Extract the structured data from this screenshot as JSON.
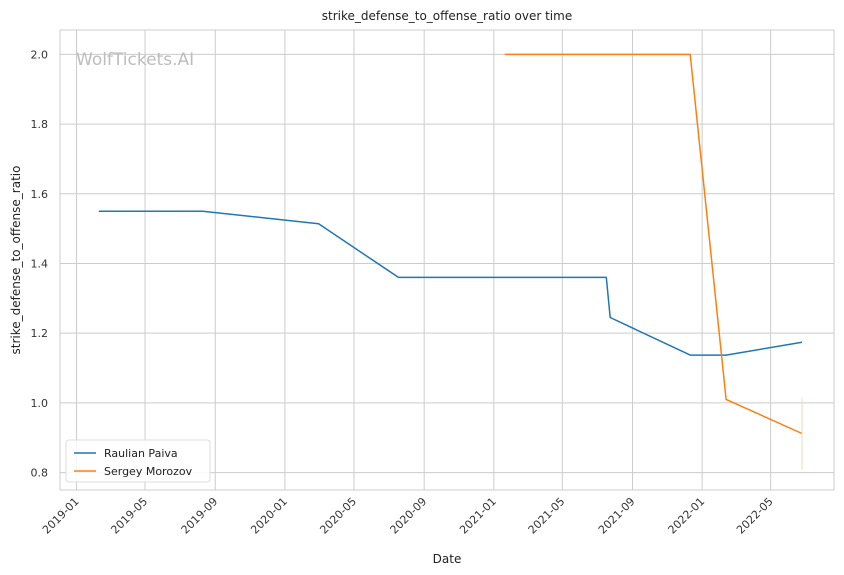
{
  "chart_data": {
    "type": "line",
    "title": "strike_defense_to_offense_ratio over time",
    "xlabel": "Date",
    "ylabel": "strike_defense_to_offense_ratio",
    "watermark": "WolfTickets.AI",
    "x_ticks": [
      "2019-01",
      "2019-05",
      "2019-09",
      "2020-01",
      "2020-05",
      "2020-09",
      "2021-01",
      "2021-05",
      "2021-09",
      "2022-01",
      "2022-05"
    ],
    "y_ticks": [
      "0.8",
      "1.0",
      "1.2",
      "1.4",
      "1.6",
      "1.8",
      "2.0"
    ],
    "xlim": [
      "2018-12-03",
      "2022-08-20"
    ],
    "ylim": [
      0.75,
      2.07
    ],
    "grid": true,
    "legend_position": "lower-left",
    "series": [
      {
        "name": "Raulian Paiva",
        "color": "#1f77b4",
        "points": [
          [
            "2019-02-09",
            1.55
          ],
          [
            "2019-08-10",
            1.55
          ],
          [
            "2020-02-29",
            1.514
          ],
          [
            "2020-07-18",
            1.36
          ],
          [
            "2021-07-17",
            1.36
          ],
          [
            "2021-07-24",
            1.245
          ],
          [
            "2021-12-11",
            1.137
          ],
          [
            "2022-02-12",
            1.137
          ],
          [
            "2022-06-25",
            1.174
          ]
        ]
      },
      {
        "name": "Sergey Morozov",
        "color": "#ff7f0e",
        "points": [
          [
            "2021-01-20",
            2.0
          ],
          [
            "2021-12-11",
            2.0
          ],
          [
            "2022-02-12",
            1.01
          ],
          [
            "2022-06-25",
            0.912
          ]
        ]
      }
    ]
  }
}
